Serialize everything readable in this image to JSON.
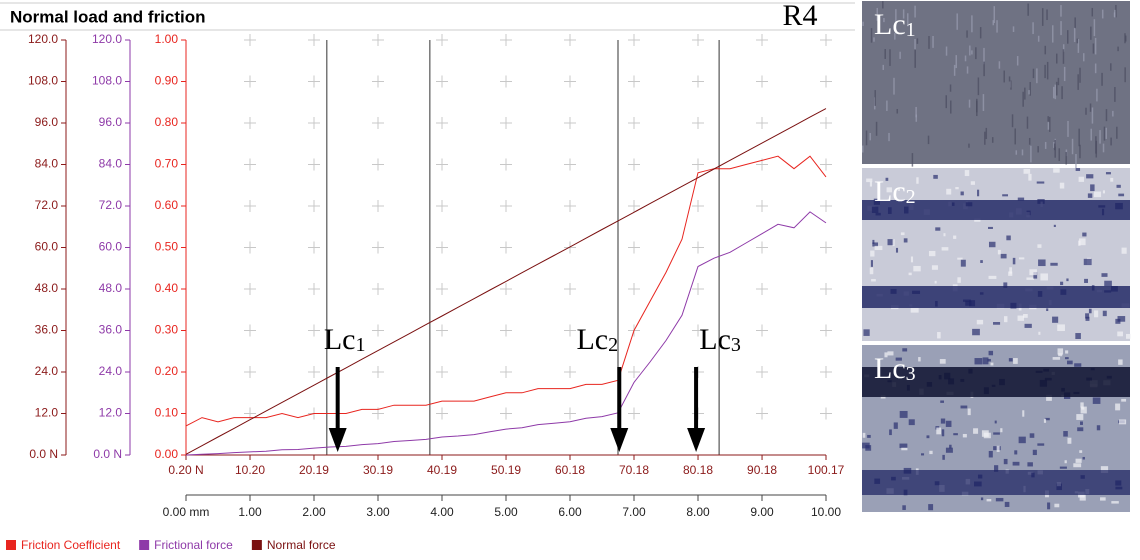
{
  "chart_data": {
    "type": "line",
    "title": "Normal load and friction",
    "sample_label": "R4",
    "x": [
      0,
      0.25,
      0.5,
      0.75,
      1,
      1.25,
      1.5,
      1.75,
      2,
      2.25,
      2.5,
      2.75,
      3,
      3.25,
      3.5,
      3.75,
      4,
      4.25,
      4.5,
      4.75,
      5,
      5.25,
      5.5,
      5.75,
      6,
      6.25,
      6.5,
      6.75,
      7,
      7.25,
      7.5,
      7.75,
      8,
      8.25,
      8.5,
      8.75,
      9,
      9.25,
      9.5,
      9.75,
      10
    ],
    "series": [
      {
        "name": "Friction Coefficient",
        "color": "#e8251f",
        "axis": "y3",
        "values": [
          0.07,
          0.09,
          0.08,
          0.09,
          0.09,
          0.09,
          0.1,
          0.09,
          0.1,
          0.1,
          0.1,
          0.11,
          0.11,
          0.12,
          0.12,
          0.12,
          0.13,
          0.13,
          0.13,
          0.14,
          0.15,
          0.15,
          0.16,
          0.16,
          0.16,
          0.17,
          0.17,
          0.18,
          0.3,
          0.37,
          0.44,
          0.52,
          0.68,
          0.69,
          0.69,
          0.7,
          0.71,
          0.72,
          0.69,
          0.72,
          0.67
        ]
      },
      {
        "name": "Frictional force",
        "color": "#8e3aa8",
        "axis": "y2",
        "values": [
          0,
          0.2,
          0.4,
          0.7,
          0.9,
          1.1,
          1.5,
          1.6,
          2,
          2.3,
          2.5,
          3,
          3.3,
          3.9,
          4.2,
          4.5,
          5.2,
          5.5,
          5.9,
          6.7,
          7.5,
          7.9,
          8.8,
          9.2,
          9.6,
          10.6,
          11.1,
          12.2,
          21,
          26.9,
          33.1,
          40.4,
          54.5,
          56.9,
          58.6,
          61.3,
          64,
          66.7,
          65.7,
          70.3,
          67.1
        ]
      },
      {
        "name": "Normal force",
        "color": "#7a1010",
        "axis": "y",
        "values": [
          0.2,
          2.7,
          5.2,
          7.7,
          10.2,
          12.7,
          15.2,
          17.7,
          20.19,
          22.7,
          25.2,
          27.7,
          30.19,
          32.7,
          35.2,
          37.7,
          40.19,
          42.7,
          45.2,
          47.7,
          50.19,
          52.7,
          55.2,
          57.7,
          60.18,
          62.7,
          65.2,
          67.7,
          70.18,
          72.7,
          75.2,
          77.7,
          80.18,
          82.7,
          85.2,
          87.7,
          90.18,
          92.7,
          95.2,
          97.7,
          100.17
        ]
      }
    ],
    "xlim": [
      0,
      10
    ],
    "xticks": [
      {
        "value": 0,
        "label": "0.00 mm"
      },
      {
        "value": 1,
        "label": "1.00"
      },
      {
        "value": 2,
        "label": "2.00"
      },
      {
        "value": 3,
        "label": "3.00"
      },
      {
        "value": 4,
        "label": "4.00"
      },
      {
        "value": 5,
        "label": "5.00"
      },
      {
        "value": 6,
        "label": "6.00"
      },
      {
        "value": 7,
        "label": "7.00"
      },
      {
        "value": 8,
        "label": "8.00"
      },
      {
        "value": 9,
        "label": "9.00"
      },
      {
        "value": 10,
        "label": "10.00"
      }
    ],
    "x2lim": [
      0.2,
      100.17
    ],
    "x2ticks": [
      {
        "value": 0.2,
        "label": "0.20 N"
      },
      {
        "value": 10.2,
        "label": "10.20"
      },
      20.19,
      30.19,
      40.19,
      50.19,
      60.18,
      70.18,
      80.18,
      90.18,
      100.17
    ],
    "ylim": [
      0,
      120
    ],
    "yticks": [
      {
        "value": 0,
        "label": "0.0 N"
      },
      {
        "value": 12,
        "label": "12.0"
      },
      {
        "value": 24,
        "label": "24.0"
      },
      {
        "value": 36,
        "label": "36.0"
      },
      {
        "value": 48,
        "label": "48.0"
      },
      {
        "value": 60,
        "label": "60.0"
      },
      {
        "value": 72,
        "label": "72.0"
      },
      {
        "value": 84,
        "label": "84.0"
      },
      {
        "value": 96,
        "label": "96.0"
      },
      {
        "value": 108,
        "label": "108.0"
      },
      {
        "value": 120,
        "label": "120.0"
      }
    ],
    "y2lim": [
      0,
      120
    ],
    "y2ticks": [
      {
        "value": 0,
        "label": "0.0 N"
      },
      {
        "value": 12,
        "label": "12.0"
      },
      {
        "value": 24,
        "label": "24.0"
      },
      {
        "value": 36,
        "label": "36.0"
      },
      {
        "value": 48,
        "label": "48.0"
      },
      {
        "value": 60,
        "label": "60.0"
      },
      {
        "value": 72,
        "label": "72.0"
      },
      {
        "value": 84,
        "label": "84.0"
      },
      {
        "value": 96,
        "label": "96.0"
      },
      {
        "value": 108,
        "label": "108.0"
      },
      {
        "value": 120,
        "label": "120.0"
      }
    ],
    "y3lim": [
      0,
      1
    ],
    "y3ticks": [
      {
        "value": 0,
        "label": "0.00"
      },
      {
        "value": 0.1,
        "label": "0.10"
      },
      {
        "value": 0.2,
        "label": "0.20"
      },
      {
        "value": 0.3,
        "label": "0.30"
      },
      {
        "value": 0.4,
        "label": "0.40"
      },
      {
        "value": 0.5,
        "label": "0.50"
      },
      {
        "value": 0.6,
        "label": "0.60"
      },
      {
        "value": 0.7,
        "label": "0.70"
      },
      {
        "value": 0.8,
        "label": "0.80"
      },
      {
        "value": 0.9,
        "label": "0.90"
      },
      {
        "value": 1,
        "label": "1.00"
      }
    ],
    "grid": "crosses",
    "vlines": [
      2.2,
      3.81,
      6.75,
      8.33
    ],
    "annotations": [
      {
        "text": "Lc",
        "sub": "1",
        "x": 2.37
      },
      {
        "text": "Lc",
        "sub": "2",
        "x": 6.77
      },
      {
        "text": "Lc",
        "sub": "3",
        "x": 7.97
      }
    ],
    "micrographs": [
      {
        "text": "Lc",
        "sub": "1"
      },
      {
        "text": "Lc",
        "sub": "2"
      },
      {
        "text": "Lc",
        "sub": "3"
      }
    ],
    "legend": "bottom-left"
  }
}
